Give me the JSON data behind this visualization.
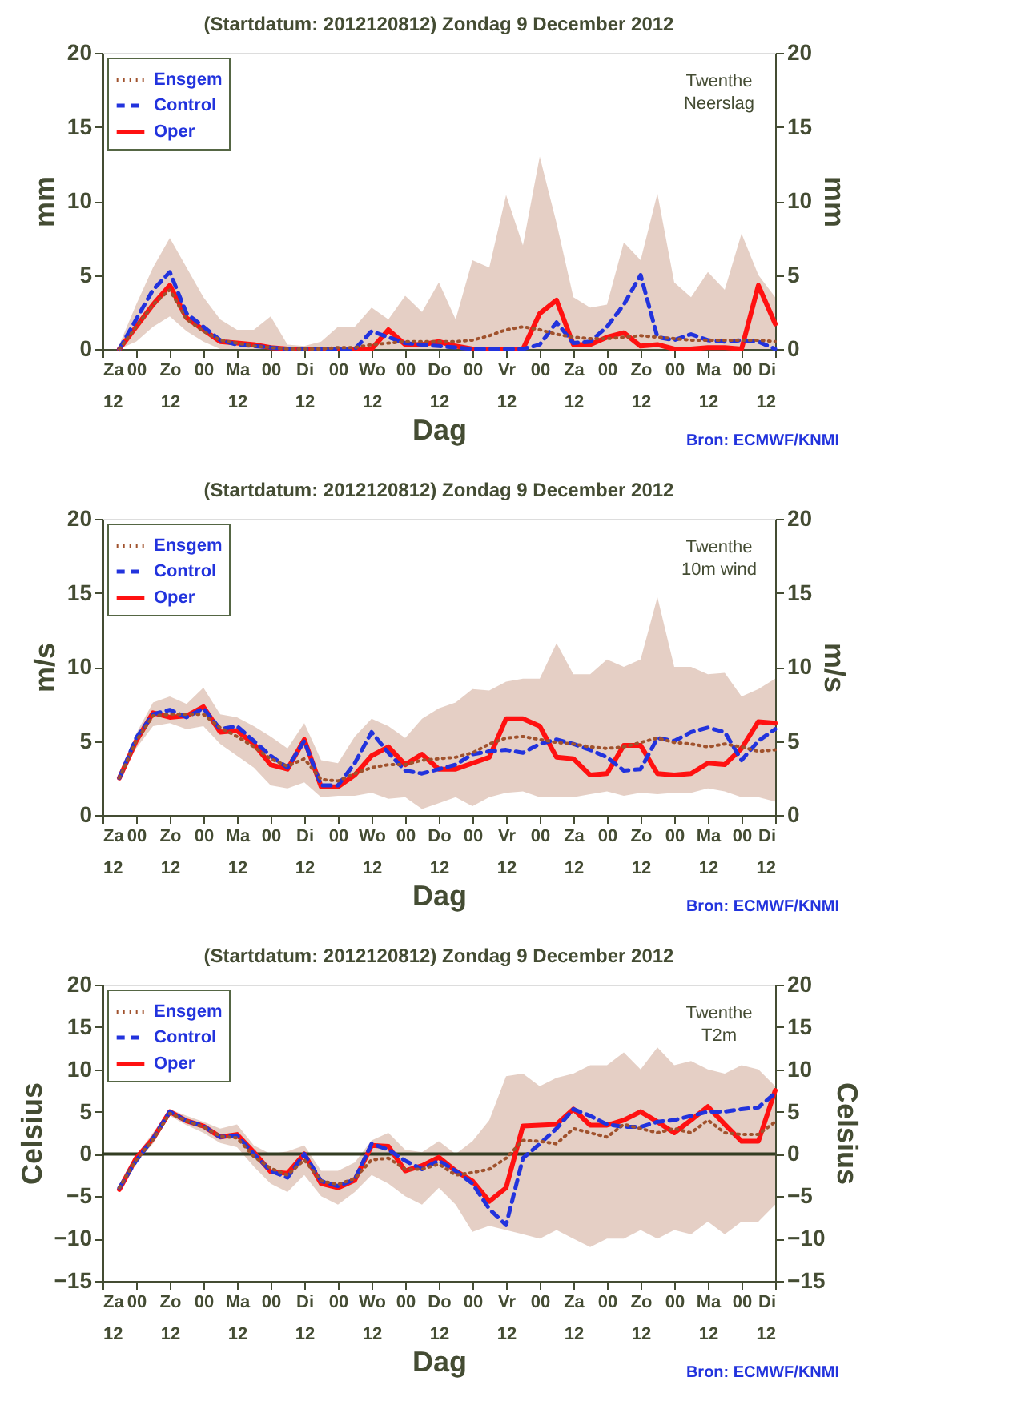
{
  "chart_data": [
    {
      "type": "line",
      "title": "(Startdatum: 2012120812)   Zondag     9 December  2012",
      "xlabel": "Dag",
      "ylabel": "mm",
      "y2label": "mm",
      "x": [
        "2012-12-08T18:00",
        "2012-12-09T00:00",
        "2012-12-09T06:00",
        "2012-12-09T12:00",
        "2012-12-09T18:00",
        "2012-12-10T00:00",
        "2012-12-10T06:00",
        "2012-12-10T12:00",
        "2012-12-10T18:00",
        "2012-12-11T00:00",
        "2012-12-11T06:00",
        "2012-12-11T12:00",
        "2012-12-11T18:00",
        "2012-12-12T00:00",
        "2012-12-12T06:00",
        "2012-12-12T12:00",
        "2012-12-12T18:00",
        "2012-12-13T00:00",
        "2012-12-13T06:00",
        "2012-12-13T12:00",
        "2012-12-13T18:00",
        "2012-12-14T00:00",
        "2012-12-14T06:00",
        "2012-12-14T12:00",
        "2012-12-14T18:00",
        "2012-12-15T00:00",
        "2012-12-15T06:00",
        "2012-12-15T12:00",
        "2012-12-15T18:00",
        "2012-12-16T00:00",
        "2012-12-16T06:00",
        "2012-12-16T12:00",
        "2012-12-16T18:00",
        "2012-12-17T00:00",
        "2012-12-17T06:00",
        "2012-12-17T12:00",
        "2012-12-17T18:00",
        "2012-12-18T00:00",
        "2012-12-18T06:00",
        "2012-12-18T12:00"
      ],
      "xlim": [
        "2012-12-08T12:00",
        "2012-12-18T12:00"
      ],
      "xticks": [
        {
          "value": "2012-12-08T12:00",
          "label": "Za\n12"
        },
        {
          "value": "2012-12-09T00:00",
          "label": "00"
        },
        {
          "value": "2012-12-09T12:00",
          "label": "Zo\n12"
        },
        {
          "value": "2012-12-10T00:00",
          "label": "00"
        },
        {
          "value": "2012-12-10T12:00",
          "label": "Ma\n12"
        },
        {
          "value": "2012-12-11T00:00",
          "label": "00"
        },
        {
          "value": "2012-12-11T12:00",
          "label": "Di\n12"
        },
        {
          "value": "2012-12-12T00:00",
          "label": "00"
        },
        {
          "value": "2012-12-12T12:00",
          "label": "Wo\n12"
        },
        {
          "value": "2012-12-13T00:00",
          "label": "00"
        },
        {
          "value": "2012-12-13T12:00",
          "label": "Do\n12"
        },
        {
          "value": "2012-12-14T00:00",
          "label": "00"
        },
        {
          "value": "2012-12-14T12:00",
          "label": "Vr\n12"
        },
        {
          "value": "2012-12-15T00:00",
          "label": "00"
        },
        {
          "value": "2012-12-15T12:00",
          "label": "Za\n12"
        },
        {
          "value": "2012-12-16T00:00",
          "label": "00"
        },
        {
          "value": "2012-12-16T12:00",
          "label": "Zo\n12"
        },
        {
          "value": "2012-12-17T00:00",
          "label": "00"
        },
        {
          "value": "2012-12-17T12:00",
          "label": "Ma\n12"
        },
        {
          "value": "2012-12-18T00:00",
          "label": "00"
        },
        {
          "value": "2012-12-18T12:00",
          "label": "Di\n12"
        }
      ],
      "ylim": [
        0,
        20
      ],
      "yticks": [
        0,
        5,
        10,
        15,
        20
      ],
      "y2lim": [
        0,
        20
      ],
      "y2ticks": [
        0,
        5,
        10,
        15,
        20
      ],
      "grid": false,
      "legend": "top left",
      "annotations": [
        "Twenthe",
        "Neerslag",
        "Bron: ECMWF/KNMI"
      ],
      "series": [
        {
          "name": "Ensgem",
          "color": "#a0522d",
          "line_style": "dotted",
          "values": [
            0,
            1.5,
            3,
            4,
            2,
            1.2,
            0.6,
            0.4,
            0.2,
            0.1,
            0,
            0,
            0,
            0.1,
            0.1,
            0.3,
            0.4,
            0.5,
            0.5,
            0.5,
            0.5,
            0.6,
            0.9,
            1.3,
            1.5,
            1.3,
            1,
            0.8,
            0.7,
            0.7,
            0.8,
            0.9,
            0.8,
            0.7,
            0.6,
            0.6,
            0.6,
            0.6,
            0.6,
            0.5
          ],
          "lower": [
            0,
            0.5,
            1.5,
            2.2,
            1.2,
            0.5,
            0,
            0,
            0,
            0,
            0,
            0,
            0,
            0,
            0,
            0,
            0,
            0,
            0,
            0,
            0,
            0,
            0,
            0,
            0,
            0,
            0,
            0,
            0,
            0,
            0,
            0,
            0,
            0,
            0,
            0,
            0,
            0,
            0,
            0
          ],
          "upper": [
            0.3,
            3,
            5.5,
            7.5,
            5.5,
            3.5,
            2,
            1.3,
            1.3,
            2.2,
            0.3,
            0.2,
            0.5,
            1.5,
            1.5,
            2.8,
            2,
            3.6,
            2.5,
            4.5,
            2,
            6,
            5.5,
            10.4,
            7,
            13,
            8.5,
            3.5,
            2.8,
            3,
            7.2,
            6,
            10.5,
            4.5,
            3.5,
            5.2,
            4,
            7.8,
            5,
            3.5
          ]
        },
        {
          "name": "Control",
          "color": "#2233dd",
          "line_style": "dashed",
          "values": [
            0,
            2,
            4,
            5.2,
            2.4,
            1.5,
            0.6,
            0.3,
            0.2,
            0.1,
            0,
            0,
            0,
            0,
            0,
            1.2,
            0.8,
            0.4,
            0.3,
            0.2,
            0.1,
            0,
            0,
            0,
            0,
            0.3,
            1.8,
            0.4,
            0.5,
            1.5,
            3,
            5,
            0.8,
            0.6,
            1,
            0.6,
            0.5,
            0.6,
            0.5,
            0
          ]
        },
        {
          "name": "Oper",
          "color": "#ff1111",
          "line_style": "solid",
          "values": [
            0,
            1.5,
            3,
            4.3,
            2.1,
            1.3,
            0.5,
            0.4,
            0.3,
            0.1,
            0,
            0,
            0,
            0,
            0,
            0,
            1.3,
            0.3,
            0.3,
            0.5,
            0.2,
            0,
            0,
            0,
            0,
            2.4,
            3.3,
            0.3,
            0.3,
            0.8,
            1.1,
            0.2,
            0.3,
            0,
            0,
            0.1,
            0.1,
            0,
            4.3,
            1.7
          ]
        }
      ]
    },
    {
      "type": "line",
      "title": "(Startdatum: 2012120812)   Zondag     9 December  2012",
      "xlabel": "Dag",
      "ylabel": "m/s",
      "y2label": "m/s",
      "x": [
        "2012-12-08T18:00",
        "2012-12-09T00:00",
        "2012-12-09T06:00",
        "2012-12-09T12:00",
        "2012-12-09T18:00",
        "2012-12-10T00:00",
        "2012-12-10T06:00",
        "2012-12-10T12:00",
        "2012-12-10T18:00",
        "2012-12-11T00:00",
        "2012-12-11T06:00",
        "2012-12-11T12:00",
        "2012-12-11T18:00",
        "2012-12-12T00:00",
        "2012-12-12T06:00",
        "2012-12-12T12:00",
        "2012-12-12T18:00",
        "2012-12-13T00:00",
        "2012-12-13T06:00",
        "2012-12-13T12:00",
        "2012-12-13T18:00",
        "2012-12-14T00:00",
        "2012-12-14T06:00",
        "2012-12-14T12:00",
        "2012-12-14T18:00",
        "2012-12-15T00:00",
        "2012-12-15T06:00",
        "2012-12-15T12:00",
        "2012-12-15T18:00",
        "2012-12-16T00:00",
        "2012-12-16T06:00",
        "2012-12-16T12:00",
        "2012-12-16T18:00",
        "2012-12-17T00:00",
        "2012-12-17T06:00",
        "2012-12-17T12:00",
        "2012-12-17T18:00",
        "2012-12-18T00:00",
        "2012-12-18T06:00",
        "2012-12-18T12:00"
      ],
      "xlim": [
        "2012-12-08T12:00",
        "2012-12-18T12:00"
      ],
      "xticks": [
        {
          "value": "2012-12-08T12:00",
          "label": "Za\n12"
        },
        {
          "value": "2012-12-09T00:00",
          "label": "00"
        },
        {
          "value": "2012-12-09T12:00",
          "label": "Zo\n12"
        },
        {
          "value": "2012-12-10T00:00",
          "label": "00"
        },
        {
          "value": "2012-12-10T12:00",
          "label": "Ma\n12"
        },
        {
          "value": "2012-12-11T00:00",
          "label": "00"
        },
        {
          "value": "2012-12-11T12:00",
          "label": "Di\n12"
        },
        {
          "value": "2012-12-12T00:00",
          "label": "00"
        },
        {
          "value": "2012-12-12T12:00",
          "label": "Wo\n12"
        },
        {
          "value": "2012-12-13T00:00",
          "label": "00"
        },
        {
          "value": "2012-12-13T12:00",
          "label": "Do\n12"
        },
        {
          "value": "2012-12-14T00:00",
          "label": "00"
        },
        {
          "value": "2012-12-14T12:00",
          "label": "Vr\n12"
        },
        {
          "value": "2012-12-15T00:00",
          "label": "00"
        },
        {
          "value": "2012-12-15T12:00",
          "label": "Za\n12"
        },
        {
          "value": "2012-12-16T00:00",
          "label": "00"
        },
        {
          "value": "2012-12-16T12:00",
          "label": "Zo\n12"
        },
        {
          "value": "2012-12-17T00:00",
          "label": "00"
        },
        {
          "value": "2012-12-17T12:00",
          "label": "Ma\n12"
        },
        {
          "value": "2012-12-18T00:00",
          "label": "00"
        },
        {
          "value": "2012-12-18T12:00",
          "label": "Di\n12"
        }
      ],
      "ylim": [
        0,
        20
      ],
      "yticks": [
        0,
        5,
        10,
        15,
        20
      ],
      "y2lim": [
        0,
        20
      ],
      "y2ticks": [
        0,
        5,
        10,
        15,
        20
      ],
      "grid": false,
      "legend": "top left",
      "annotations": [
        "Twenthe",
        "10m wind",
        "Bron: ECMWF/KNMI"
      ],
      "series": [
        {
          "name": "Ensgem",
          "color": "#a0522d",
          "line_style": "dotted",
          "values": [
            2.5,
            5,
            6.7,
            6.8,
            6.8,
            6.8,
            5.9,
            5.3,
            4.6,
            3.8,
            3.3,
            3.8,
            2.4,
            2.3,
            2.8,
            3.2,
            3.4,
            3.4,
            3.7,
            3.8,
            3.9,
            4.2,
            4.8,
            5.2,
            5.3,
            5.1,
            4.9,
            4.8,
            4.6,
            4.5,
            4.6,
            4.9,
            5.2,
            4.9,
            4.8,
            4.6,
            4.8,
            4.6,
            4.3,
            4.4
          ],
          "lower": [
            2.4,
            4.5,
            6.0,
            6.2,
            5.8,
            6,
            4.8,
            4,
            3.2,
            2,
            1.8,
            2.2,
            1.2,
            1.3,
            1.3,
            1.5,
            1.1,
            1.2,
            0.4,
            0.8,
            1.2,
            0.6,
            1.2,
            1.5,
            1.6,
            1.2,
            1.2,
            1.2,
            1.4,
            1.6,
            1.3,
            1.5,
            1.4,
            1.5,
            1.5,
            1.8,
            1.6,
            1.2,
            1.2,
            0.9
          ],
          "upper": [
            2.7,
            5.5,
            7.6,
            8,
            7.5,
            8.6,
            6.8,
            6.6,
            6,
            5.3,
            4.5,
            6.2,
            3.7,
            3.5,
            5.3,
            6.5,
            6,
            5.2,
            6.5,
            7.2,
            7.6,
            8.5,
            8.4,
            9,
            9.2,
            9.2,
            11.6,
            9.5,
            9.5,
            10.5,
            10,
            10.5,
            14.7,
            10,
            10,
            9.5,
            9.6,
            8,
            8.5,
            9.2
          ]
        },
        {
          "name": "Control",
          "color": "#2233dd",
          "line_style": "dashed",
          "values": [
            2.5,
            5.2,
            6.8,
            7.1,
            6.6,
            7.2,
            5.8,
            6,
            5,
            4,
            3.2,
            5,
            2,
            2,
            3.5,
            5.6,
            4.2,
            3,
            2.8,
            3.1,
            3.4,
            4.1,
            4.3,
            4.4,
            4.2,
            4.8,
            5.1,
            4.8,
            4.4,
            3.9,
            3,
            3.1,
            5.2,
            5,
            5.6,
            5.9,
            5.6,
            3.7,
            5,
            5.8
          ]
        },
        {
          "name": "Oper",
          "color": "#ff1111",
          "line_style": "solid",
          "values": [
            2.5,
            5,
            6.9,
            6.6,
            6.7,
            7.3,
            5.6,
            5.7,
            4.8,
            3.4,
            3.1,
            5.1,
            1.9,
            1.9,
            2.7,
            4.0,
            4.6,
            3.4,
            4.1,
            3.1,
            3.1,
            3.5,
            3.9,
            6.5,
            6.5,
            6.0,
            3.9,
            3.8,
            2.7,
            2.8,
            4.7,
            4.7,
            2.8,
            2.7,
            2.8,
            3.5,
            3.4,
            4.5,
            6.3,
            6.2
          ]
        }
      ]
    },
    {
      "type": "line",
      "title": "(Startdatum: 2012120812)   Zondag     9 December  2012",
      "xlabel": "Dag",
      "ylabel": "Celsius",
      "y2label": "Celsius",
      "x": [
        "2012-12-08T18:00",
        "2012-12-09T00:00",
        "2012-12-09T06:00",
        "2012-12-09T12:00",
        "2012-12-09T18:00",
        "2012-12-10T00:00",
        "2012-12-10T06:00",
        "2012-12-10T12:00",
        "2012-12-10T18:00",
        "2012-12-11T00:00",
        "2012-12-11T06:00",
        "2012-12-11T12:00",
        "2012-12-11T18:00",
        "2012-12-12T00:00",
        "2012-12-12T06:00",
        "2012-12-12T12:00",
        "2012-12-12T18:00",
        "2012-12-13T00:00",
        "2012-12-13T06:00",
        "2012-12-13T12:00",
        "2012-12-13T18:00",
        "2012-12-14T00:00",
        "2012-12-14T06:00",
        "2012-12-14T12:00",
        "2012-12-14T18:00",
        "2012-12-15T00:00",
        "2012-12-15T06:00",
        "2012-12-15T12:00",
        "2012-12-15T18:00",
        "2012-12-16T00:00",
        "2012-12-16T06:00",
        "2012-12-16T12:00",
        "2012-12-16T18:00",
        "2012-12-17T00:00",
        "2012-12-17T06:00",
        "2012-12-17T12:00",
        "2012-12-17T18:00",
        "2012-12-18T00:00",
        "2012-12-18T06:00",
        "2012-12-18T12:00"
      ],
      "xlim": [
        "2012-12-08T12:00",
        "2012-12-18T12:00"
      ],
      "xticks": [
        {
          "value": "2012-12-08T12:00",
          "label": "Za\n12"
        },
        {
          "value": "2012-12-09T00:00",
          "label": "00"
        },
        {
          "value": "2012-12-09T12:00",
          "label": "Zo\n12"
        },
        {
          "value": "2012-12-10T00:00",
          "label": "00"
        },
        {
          "value": "2012-12-10T12:00",
          "label": "Ma\n12"
        },
        {
          "value": "2012-12-11T00:00",
          "label": "00"
        },
        {
          "value": "2012-12-11T12:00",
          "label": "Di\n12"
        },
        {
          "value": "2012-12-12T00:00",
          "label": "00"
        },
        {
          "value": "2012-12-12T12:00",
          "label": "Wo\n12"
        },
        {
          "value": "2012-12-13T00:00",
          "label": "00"
        },
        {
          "value": "2012-12-13T12:00",
          "label": "Do\n12"
        },
        {
          "value": "2012-12-14T00:00",
          "label": "00"
        },
        {
          "value": "2012-12-14T12:00",
          "label": "Vr\n12"
        },
        {
          "value": "2012-12-15T00:00",
          "label": "00"
        },
        {
          "value": "2012-12-15T12:00",
          "label": "Za\n12"
        },
        {
          "value": "2012-12-16T00:00",
          "label": "00"
        },
        {
          "value": "2012-12-16T12:00",
          "label": "Zo\n12"
        },
        {
          "value": "2012-12-17T00:00",
          "label": "00"
        },
        {
          "value": "2012-12-17T12:00",
          "label": "Ma\n12"
        },
        {
          "value": "2012-12-18T00:00",
          "label": "00"
        },
        {
          "value": "2012-12-18T12:00",
          "label": "Di\n12"
        }
      ],
      "ylim": [
        -15,
        20
      ],
      "yticks": [
        -15,
        -10,
        -5,
        0,
        5,
        10,
        15,
        20
      ],
      "y2lim": [
        -15,
        20
      ],
      "y2ticks": [
        -15,
        -10,
        -5,
        0,
        5,
        10,
        15,
        20
      ],
      "grid": false,
      "legend": "top left",
      "ref_lines": [
        {
          "axis": "y",
          "value": 0,
          "color": "#333d22",
          "line_style": "solid"
        }
      ],
      "annotations": [
        "Twenthe",
        "T2m",
        "Bron: ECMWF/KNMI"
      ],
      "series": [
        {
          "name": "Ensgem",
          "color": "#a0522d",
          "line_style": "dotted",
          "values": [
            -4,
            -0.7,
            1.7,
            4.8,
            3.9,
            3.2,
            2.1,
            1.9,
            -0.3,
            -1.7,
            -2.5,
            -0.7,
            -3.2,
            -3.6,
            -2.9,
            -0.7,
            -0.5,
            -1.8,
            -1.8,
            -1.2,
            -2.5,
            -2.2,
            -1.8,
            -0.5,
            1.6,
            1.5,
            1.2,
            3,
            2.5,
            2,
            3.5,
            3,
            2.5,
            3,
            2.5,
            4,
            2.5,
            2.3,
            2.3,
            3.8
          ],
          "lower": [
            -4.3,
            -1,
            1.2,
            4.5,
            3.4,
            2.5,
            1.3,
            0.8,
            -1.5,
            -3.5,
            -4.5,
            -2.5,
            -5,
            -6,
            -4.5,
            -2.5,
            -3.5,
            -5,
            -6,
            -4,
            -6,
            -9.2,
            -8.5,
            -9,
            -9.5,
            -10,
            -9,
            -10,
            -11,
            -10,
            -10,
            -9,
            -10,
            -9,
            -9.5,
            -8,
            -9.5,
            -8,
            -8,
            -6
          ],
          "upper": [
            -3.8,
            -0.2,
            2.5,
            5.3,
            4.5,
            3.8,
            3,
            3.5,
            1,
            0,
            0.3,
            1,
            -2,
            -2,
            -1,
            1.6,
            2.5,
            0.5,
            0.2,
            1.5,
            0,
            1.5,
            4,
            9.2,
            9.5,
            8,
            9,
            9.5,
            10.5,
            10.5,
            12,
            10,
            12.6,
            10.5,
            11,
            10,
            9.5,
            10.5,
            10,
            8
          ]
        },
        {
          "name": "Control",
          "color": "#2233dd",
          "line_style": "dashed",
          "values": [
            -4,
            -0.8,
            1.8,
            5,
            3.9,
            3.3,
            2,
            2.2,
            0,
            -2,
            -2.8,
            0,
            -3.2,
            -3.8,
            -3,
            1.2,
            0.5,
            -0.8,
            -1.8,
            -0.8,
            -2,
            -3.5,
            -6.5,
            -8.4,
            -0.5,
            1.2,
            3,
            5.3,
            4.5,
            3.5,
            3.2,
            3.2,
            3.8,
            4,
            4.5,
            5,
            5,
            5.3,
            5.5,
            7.2
          ]
        },
        {
          "name": "Oper",
          "color": "#ff1111",
          "line_style": "solid",
          "values": [
            -4.2,
            -0.5,
            1.8,
            5,
            3.9,
            3.3,
            2,
            2.3,
            0.2,
            -2.1,
            -2.3,
            0,
            -3.5,
            -4,
            -3.1,
            1,
            0.9,
            -2,
            -1.4,
            -0.4,
            -2,
            -3.2,
            -5.6,
            -4,
            3.3,
            3.4,
            3.5,
            5.3,
            3.4,
            3.4,
            4.0,
            5.0,
            3.8,
            2.5,
            4.0,
            5.6,
            3.5,
            1.5,
            1.5,
            7.5
          ]
        }
      ]
    }
  ]
}
